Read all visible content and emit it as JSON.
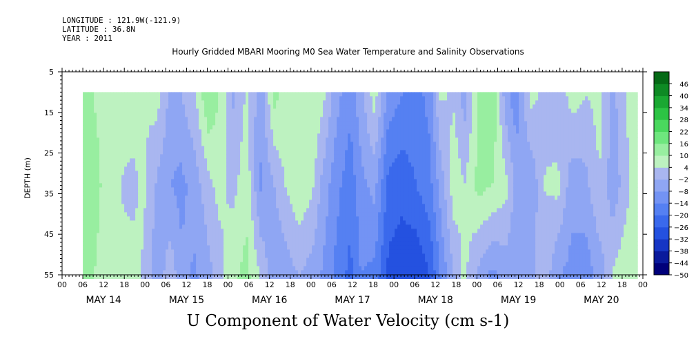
{
  "header": {
    "longitude": "LONGITUDE : 121.9W(-121.9)",
    "latitude": "LATITUDE : 36.8N",
    "year": "YEAR : 2011",
    "title": "Hourly Gridded MBARI Mooring M0 Sea Water Temperature and Salinity Observations"
  },
  "chart_data": {
    "type": "heatmap",
    "title": "Hourly Gridded MBARI Mooring M0 Sea Water Temperature and Salinity Observations",
    "variable_label": "U Component of Water Velocity (cm s-1)",
    "ylabel": "DEPTH (m)",
    "y_range": [
      5,
      55
    ],
    "y_inverted": true,
    "y_ticks": [
      5,
      15,
      25,
      35,
      45,
      55
    ],
    "data_depth_range": [
      10,
      55
    ],
    "x_range_hours": [
      0,
      168
    ],
    "x_hour_ticks": [
      "00",
      "06",
      "12",
      "18",
      "00",
      "06",
      "12",
      "18",
      "00",
      "06",
      "12",
      "18",
      "00",
      "06",
      "12",
      "18",
      "00",
      "06",
      "12",
      "18",
      "00",
      "06",
      "12",
      "18",
      "00",
      "06",
      "12",
      "18",
      "00"
    ],
    "days": [
      "MAY 14",
      "MAY 15",
      "MAY 16",
      "MAY 17",
      "MAY 18",
      "MAY 19",
      "MAY 20"
    ],
    "colorbar_levels": [
      -50,
      -44,
      -38,
      -32,
      -26,
      -20,
      -14,
      -8,
      -2,
      4,
      10,
      16,
      22,
      28,
      34,
      40,
      46
    ],
    "colorbar_colors": [
      "#00007a",
      "#0a1a9c",
      "#1636c4",
      "#2451e0",
      "#3a69ec",
      "#5580f2",
      "#7393f4",
      "#8fa6f3",
      "#a9b6f0",
      "#bdf2c0",
      "#98eea0",
      "#6ee67e",
      "#4ad85e",
      "#2cc444",
      "#1aa832",
      "#0e8a24",
      "#056a16"
    ],
    "profiles": [
      {
        "hour": 6,
        "top": 12,
        "mid": 14,
        "bot": 13
      },
      {
        "hour": 10,
        "top": 9,
        "mid": 11,
        "bot": 9
      },
      {
        "hour": 15,
        "top": 6,
        "mid": 5,
        "bot": 4
      },
      {
        "hour": 20,
        "top": 8,
        "mid": 2,
        "bot": 7
      },
      {
        "hour": 23,
        "top": 4,
        "mid": 6,
        "bot": 3
      },
      {
        "hour": 27,
        "top": 7,
        "mid": -3,
        "bot": -6
      },
      {
        "hour": 31,
        "top": -4,
        "mid": -8,
        "bot": 2
      },
      {
        "hour": 34,
        "top": -2,
        "mid": -10,
        "bot": -6
      },
      {
        "hour": 38,
        "top": 3,
        "mid": -5,
        "bot": -9
      },
      {
        "hour": 42,
        "top": 16,
        "mid": 2,
        "bot": -4
      },
      {
        "hour": 45,
        "top": 10,
        "mid": 6,
        "bot": 1
      },
      {
        "hour": 49,
        "top": -3,
        "mid": 2,
        "bot": 9
      },
      {
        "hour": 53,
        "top": 5,
        "mid": 8,
        "bot": 12
      },
      {
        "hour": 57,
        "top": -6,
        "mid": -9,
        "bot": 4
      },
      {
        "hour": 61,
        "top": 12,
        "mid": -2,
        "bot": -8
      },
      {
        "hour": 64,
        "top": 8,
        "mid": 4,
        "bot": -6
      },
      {
        "hour": 68,
        "top": 4,
        "mid": 9,
        "bot": -2
      },
      {
        "hour": 72,
        "top": 10,
        "mid": 5,
        "bot": -5
      },
      {
        "hour": 75,
        "top": 6,
        "mid": -4,
        "bot": -9
      },
      {
        "hour": 79,
        "top": -6,
        "mid": -12,
        "bot": -16
      },
      {
        "hour": 83,
        "top": -12,
        "mid": -18,
        "bot": -22
      },
      {
        "hour": 86,
        "top": -4,
        "mid": -10,
        "bot": -14
      },
      {
        "hour": 90,
        "top": 7,
        "mid": -6,
        "bot": -16
      },
      {
        "hour": 94,
        "top": -10,
        "mid": -22,
        "bot": -28
      },
      {
        "hour": 98,
        "top": -14,
        "mid": -24,
        "bot": -30
      },
      {
        "hour": 102,
        "top": -16,
        "mid": -20,
        "bot": -32
      },
      {
        "hour": 106,
        "top": -12,
        "mid": -16,
        "bot": -26
      },
      {
        "hour": 109,
        "top": 5,
        "mid": -6,
        "bot": -14
      },
      {
        "hour": 113,
        "top": 3,
        "mid": 8,
        "bot": -2
      },
      {
        "hour": 116,
        "top": -5,
        "mid": 4,
        "bot": 6
      },
      {
        "hour": 120,
        "top": 10,
        "mid": 12,
        "bot": -4
      },
      {
        "hour": 124,
        "top": 16,
        "mid": 10,
        "bot": -10
      },
      {
        "hour": 128,
        "top": -6,
        "mid": 6,
        "bot": -6
      },
      {
        "hour": 131,
        "top": -12,
        "mid": -4,
        "bot": -8
      },
      {
        "hour": 135,
        "top": 6,
        "mid": -8,
        "bot": -4
      },
      {
        "hour": 139,
        "top": 3,
        "mid": 4,
        "bot": 2
      },
      {
        "hour": 143,
        "top": -2,
        "mid": 6,
        "bot": -8
      },
      {
        "hour": 147,
        "top": 7,
        "mid": -6,
        "bot": -10
      },
      {
        "hour": 151,
        "top": 4,
        "mid": -4,
        "bot": -12
      },
      {
        "hour": 155,
        "top": 6,
        "mid": 4,
        "bot": -6
      },
      {
        "hour": 159,
        "top": -4,
        "mid": -6,
        "bot": 5
      },
      {
        "hour": 163,
        "top": 5,
        "mid": 2,
        "bot": 9
      },
      {
        "hour": 166,
        "top": 10,
        "mid": 8,
        "bot": 7
      }
    ]
  }
}
